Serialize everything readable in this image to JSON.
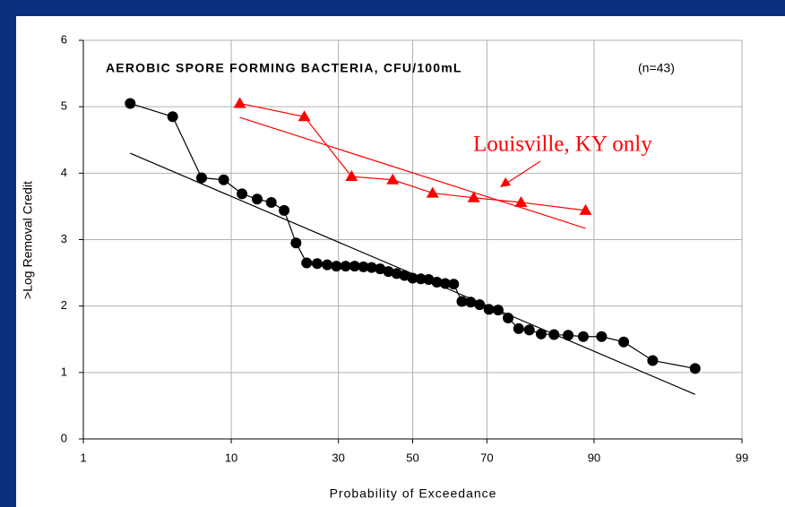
{
  "chart_data": {
    "type": "probability-plot",
    "title": "AEROBIC SPORE FORMING BACTERIA, CFU/100mL",
    "subtitle": "(n=43)",
    "y_label": ">Log Removal Credit",
    "x_label": "Probability of Exceedance",
    "annotation": "Louisville, KY only",
    "x_scale": "probability",
    "xlim": [
      1,
      99
    ],
    "xticks": [
      1,
      10,
      30,
      50,
      70,
      90,
      99
    ],
    "ylim": [
      0,
      6
    ],
    "yticks": [
      0,
      1,
      2,
      3,
      4,
      5,
      6
    ],
    "grid": true,
    "series": [
      {
        "color": "#000000",
        "marker": "circle",
        "line": true,
        "x": [
          2.3,
          4.5,
          6.8,
          9.1,
          11.4,
          13.6,
          15.9,
          18.2,
          20.5,
          22.7,
          25.0,
          27.3,
          29.5,
          31.8,
          34.1,
          36.4,
          38.6,
          40.9,
          43.2,
          45.5,
          47.7,
          50.0,
          52.3,
          54.5,
          56.8,
          59.1,
          61.4,
          63.6,
          65.9,
          68.2,
          70.5,
          72.7,
          75.0,
          77.3,
          79.5,
          81.8,
          84.1,
          86.4,
          88.6,
          90.9,
          93.2,
          95.5,
          97.7
        ],
        "values": [
          5.05,
          4.85,
          3.93,
          3.9,
          3.69,
          3.61,
          3.56,
          3.44,
          2.95,
          2.65,
          2.64,
          2.62,
          2.6,
          2.6,
          2.6,
          2.59,
          2.58,
          2.56,
          2.52,
          2.49,
          2.46,
          2.42,
          2.41,
          2.4,
          2.36,
          2.34,
          2.33,
          2.07,
          2.06,
          2.02,
          1.95,
          1.94,
          1.82,
          1.66,
          1.64,
          1.58,
          1.57,
          1.56,
          1.54,
          1.54,
          1.46,
          1.18,
          1.06
        ]
      },
      {
        "color": "#000000",
        "marker": "none",
        "line": true,
        "x": [
          2.3,
          97.7
        ],
        "values": [
          4.3,
          0.67
        ]
      },
      {
        "color": "#ff0000",
        "marker": "triangle",
        "line": true,
        "x": [
          11.1,
          22.2,
          33.3,
          44.4,
          55.6,
          66.7,
          77.8,
          88.9
        ],
        "values": [
          5.05,
          4.85,
          3.95,
          3.9,
          3.7,
          3.63,
          3.56,
          3.44
        ]
      },
      {
        "color": "#ff0000",
        "marker": "none",
        "line": true,
        "x": [
          11.1,
          88.9
        ],
        "values": [
          4.84,
          3.17
        ]
      }
    ]
  }
}
